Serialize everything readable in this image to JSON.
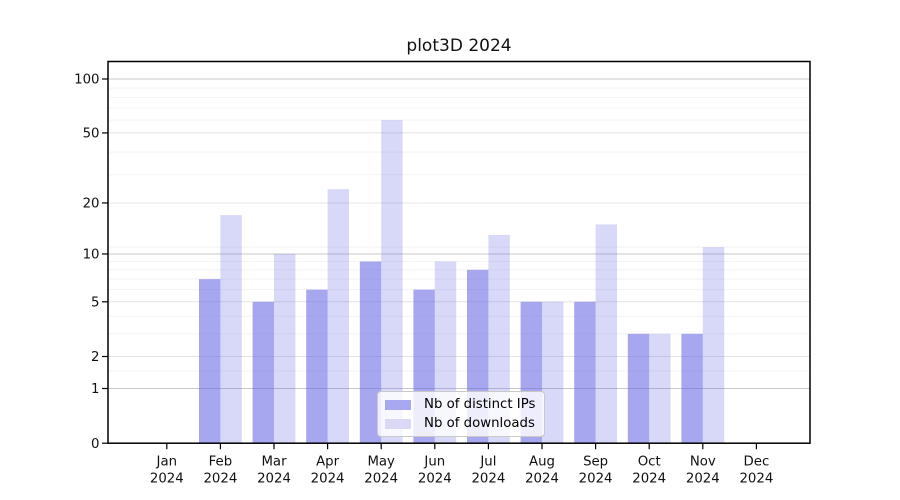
{
  "title": "plot3D 2024",
  "legend": {
    "items": [
      {
        "label": "Nb of distinct IPs",
        "swatch": "#a8a8f0"
      },
      {
        "label": "Nb of downloads",
        "swatch": "#d9d9f7"
      }
    ]
  },
  "axes": {
    "y_tick_values": [
      0,
      1,
      2,
      5,
      10,
      20,
      50,
      100
    ],
    "y_tick_labels": [
      "0",
      "1",
      "2",
      "5",
      "10",
      "20",
      "50",
      "100"
    ],
    "y_decade_values": [
      1,
      10,
      100
    ],
    "y_minor_values": [
      1.5,
      3,
      4,
      6,
      7,
      8,
      9,
      11,
      29,
      39,
      59,
      69,
      79,
      89
    ],
    "x_year": "2024"
  },
  "colors": {
    "series_fills": [
      "rgba(103,103,229,0.58)",
      "rgba(103,103,229,0.26)"
    ],
    "gridline_decade": "#c8c8c8",
    "gridline_major": "#e4e4e4",
    "gridline_minor": "#f3f3f3",
    "axis_line": "#000000",
    "text": "#111111",
    "legend_border": "#c9c9c9",
    "legend_bg": "rgba(255,255,255,0.8)",
    "background": "#ffffff"
  },
  "chart_data": {
    "type": "bar",
    "title": "plot3D 2024",
    "categories": [
      "Jan 2024",
      "Feb 2024",
      "Mar 2024",
      "Apr 2024",
      "May 2024",
      "Jun 2024",
      "Jul 2024",
      "Aug 2024",
      "Sep 2024",
      "Oct 2024",
      "Nov 2024",
      "Dec 2024"
    ],
    "series": [
      {
        "name": "Nb of distinct IPs",
        "values": [
          0,
          7,
          5,
          6,
          9,
          6,
          8,
          5,
          5,
          3,
          3,
          0
        ]
      },
      {
        "name": "Nb of downloads",
        "values": [
          0,
          17,
          10,
          24,
          59,
          9,
          13,
          5,
          15,
          3,
          11,
          0
        ]
      }
    ],
    "xlabel": "",
    "ylabel": "",
    "yscale": "log1p",
    "ylim": [
      0,
      125
    ],
    "grid": "horizontal",
    "legend_position": "lower center"
  }
}
